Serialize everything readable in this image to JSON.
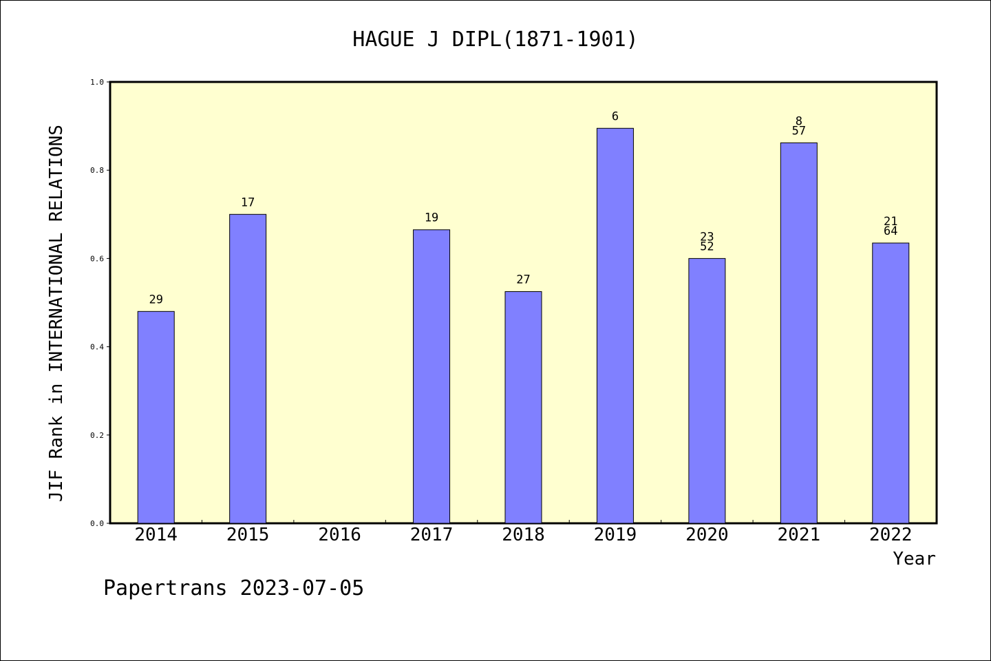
{
  "chart_data": {
    "type": "bar",
    "title": "HAGUE J DIPL(1871-1901)",
    "xlabel": "Year",
    "ylabel": "JIF Rank in INTERNATIONAL RELATIONS",
    "ylim": [
      0,
      1.0
    ],
    "yticks": [
      "0.0",
      "0.2",
      "0.4",
      "0.6",
      "0.8",
      "1.0"
    ],
    "categories": [
      "2014",
      "2015",
      "2016",
      "2017",
      "2018",
      "2019",
      "2020",
      "2021",
      "2022"
    ],
    "values": [
      0.48,
      0.7,
      null,
      0.665,
      0.525,
      0.895,
      0.6,
      0.862,
      0.635
    ],
    "labels": [
      [
        "29"
      ],
      [
        "17"
      ],
      [],
      [
        "19"
      ],
      [
        "27"
      ],
      [
        "6"
      ],
      [
        "23",
        "52"
      ],
      [
        "8",
        "57"
      ],
      [
        "21",
        "64"
      ]
    ],
    "grid": false,
    "colors": {
      "bar": "#8080ff",
      "plot_background": "#ffffd0",
      "axis": "#000000"
    }
  },
  "footer": "Papertrans 2023-07-05"
}
